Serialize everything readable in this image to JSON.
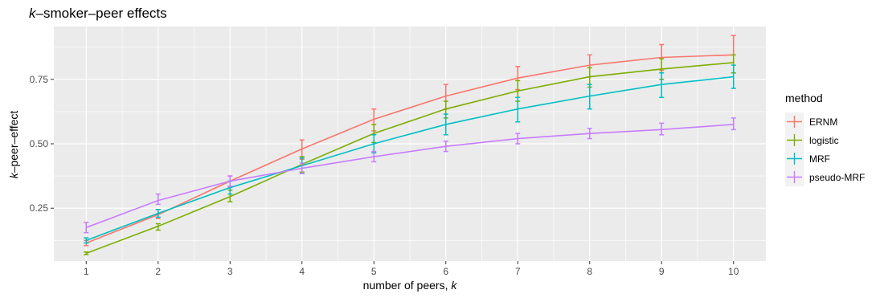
{
  "chart_data": {
    "type": "line",
    "title_italic": "k",
    "title_rest": "–smoker–peer effects",
    "xlabel_prefix": "number of peers, ",
    "xlabel_italic": "k",
    "ylabel_italic": "k",
    "ylabel_rest": "–peer–effect",
    "x": [
      1,
      2,
      3,
      4,
      5,
      6,
      7,
      8,
      9,
      10
    ],
    "x_tick_labels": [
      "1",
      "2",
      "3",
      "4",
      "5",
      "6",
      "7",
      "8",
      "9",
      "10"
    ],
    "y_ticks": [
      0.25,
      0.5,
      0.75
    ],
    "y_tick_labels": [
      "0.25",
      "0.50",
      "0.75"
    ],
    "xlim": [
      0.55,
      10.45
    ],
    "ylim": [
      0.045,
      0.955
    ],
    "grid": true,
    "legend": {
      "title": "method",
      "placement": "right"
    },
    "series": [
      {
        "name": "ERNM",
        "color": "#F8766D",
        "values": [
          0.115,
          0.225,
          0.355,
          0.48,
          0.595,
          0.685,
          0.755,
          0.805,
          0.835,
          0.845
        ],
        "lower": [
          0.105,
          0.21,
          0.33,
          0.44,
          0.55,
          0.635,
          0.71,
          0.76,
          0.785,
          0.775
        ],
        "upper": [
          0.125,
          0.245,
          0.375,
          0.515,
          0.635,
          0.73,
          0.8,
          0.845,
          0.885,
          0.92
        ]
      },
      {
        "name": "logistic",
        "color": "#7CAE00",
        "values": [
          0.075,
          0.18,
          0.295,
          0.42,
          0.54,
          0.635,
          0.705,
          0.76,
          0.79,
          0.815
        ],
        "lower": [
          0.07,
          0.165,
          0.275,
          0.39,
          0.505,
          0.6,
          0.665,
          0.72,
          0.75,
          0.775
        ],
        "upper": [
          0.08,
          0.19,
          0.32,
          0.45,
          0.575,
          0.665,
          0.745,
          0.795,
          0.83,
          0.845
        ]
      },
      {
        "name": "MRF",
        "color": "#00BFC4",
        "values": [
          0.125,
          0.23,
          0.33,
          0.415,
          0.5,
          0.575,
          0.635,
          0.685,
          0.73,
          0.76
        ],
        "lower": [
          0.115,
          0.215,
          0.305,
          0.385,
          0.465,
          0.535,
          0.585,
          0.635,
          0.68,
          0.715
        ],
        "upper": [
          0.135,
          0.245,
          0.355,
          0.445,
          0.535,
          0.615,
          0.68,
          0.73,
          0.775,
          0.805
        ]
      },
      {
        "name": "pseudo-MRF",
        "color": "#C77CFF",
        "values": [
          0.175,
          0.28,
          0.355,
          0.405,
          0.45,
          0.49,
          0.52,
          0.54,
          0.555,
          0.575
        ],
        "lower": [
          0.155,
          0.265,
          0.335,
          0.385,
          0.43,
          0.47,
          0.5,
          0.52,
          0.535,
          0.555
        ],
        "upper": [
          0.195,
          0.305,
          0.375,
          0.425,
          0.47,
          0.51,
          0.54,
          0.56,
          0.58,
          0.6
        ]
      }
    ]
  }
}
